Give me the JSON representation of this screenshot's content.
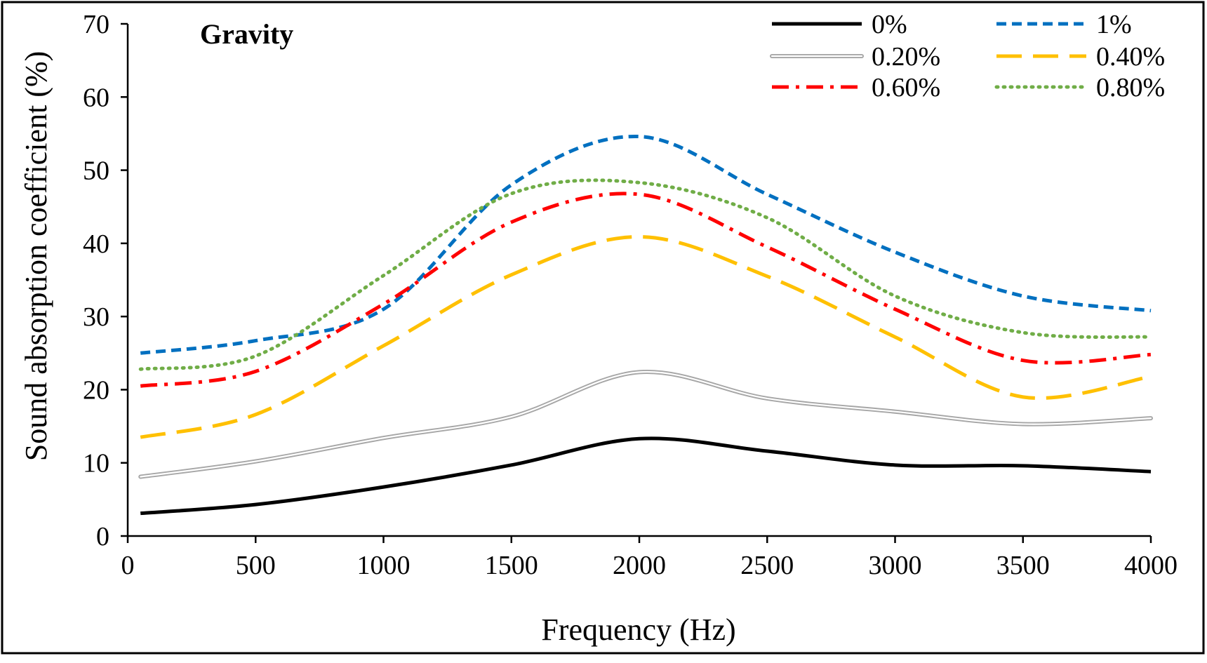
{
  "chart_data": {
    "type": "line",
    "title": "Gravity",
    "xlabel": "Frequency (Hz)",
    "ylabel": "Sound absorption coefficient (%)",
    "xlim": [
      0,
      4000
    ],
    "ylim": [
      0,
      70
    ],
    "xticks": [
      0,
      500,
      1000,
      1500,
      2000,
      2500,
      3000,
      3500,
      4000
    ],
    "yticks": [
      0,
      10,
      20,
      30,
      40,
      50,
      60,
      70
    ],
    "grid": false,
    "legend_position": "top-right",
    "x": [
      50,
      500,
      1000,
      1500,
      2000,
      2500,
      3000,
      3500,
      4000
    ],
    "series": [
      {
        "name": "0%",
        "color": "#000000",
        "style": "solid",
        "values": [
          3.1,
          4.3,
          6.7,
          9.7,
          13.3,
          11.6,
          9.7,
          9.6,
          8.8
        ]
      },
      {
        "name": "1%",
        "color": "#0070C0",
        "style": "dashed",
        "values": [
          25.0,
          26.7,
          31.0,
          48.0,
          54.6,
          46.7,
          38.8,
          32.8,
          30.8
        ]
      },
      {
        "name": "0.20%",
        "color": "#A6A6A6",
        "style": "double",
        "values": [
          8.1,
          10.2,
          13.4,
          16.3,
          22.4,
          18.8,
          17.0,
          15.3,
          16.1
        ]
      },
      {
        "name": "0.40%",
        "color": "#FFC000",
        "style": "longdash",
        "values": [
          13.5,
          16.6,
          26.0,
          35.7,
          40.9,
          35.5,
          27.2,
          19.0,
          21.8
        ]
      },
      {
        "name": "0.60%",
        "color": "#FF0000",
        "style": "dashdot",
        "values": [
          20.5,
          22.5,
          31.7,
          42.9,
          46.7,
          39.5,
          31.0,
          24.0,
          24.8
        ]
      },
      {
        "name": "0.80%",
        "color": "#70AD47",
        "style": "dotted",
        "values": [
          22.8,
          24.6,
          35.6,
          46.8,
          48.3,
          43.5,
          32.8,
          27.8,
          27.2
        ]
      }
    ]
  }
}
